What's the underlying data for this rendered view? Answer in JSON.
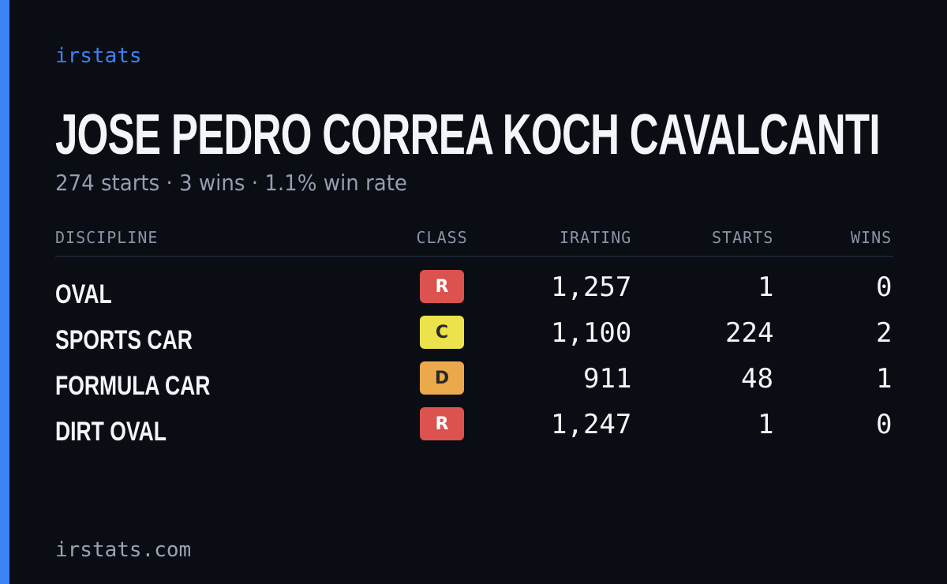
{
  "brand": "irstats",
  "driver": {
    "name": "JOSE PEDRO CORREA KOCH CAVALCANTI",
    "summary": "274 starts · 3 wins · 1.1% win rate"
  },
  "table": {
    "headers": [
      "DISCIPLINE",
      "CLASS",
      "IRATING",
      "STARTS",
      "WINS"
    ],
    "rows": [
      {
        "discipline": "OVAL",
        "class": "R",
        "class_color": "#dc524e",
        "irating": "1,257",
        "starts": "1",
        "wins": "0"
      },
      {
        "discipline": "SPORTS CAR",
        "class": "C",
        "class_color": "#ece24b",
        "irating": "1,100",
        "starts": "224",
        "wins": "2"
      },
      {
        "discipline": "FORMULA CAR",
        "class": "D",
        "class_color": "#eca94c",
        "irating": "911",
        "starts": "48",
        "wins": "1"
      },
      {
        "discipline": "DIRT OVAL",
        "class": "R",
        "class_color": "#dc524e",
        "irating": "1,247",
        "starts": "1",
        "wins": "0"
      }
    ]
  },
  "footer": "irstats.com"
}
